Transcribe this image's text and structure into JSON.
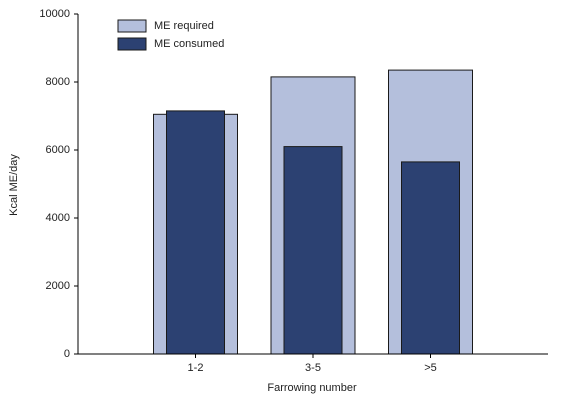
{
  "chart_data": {
    "type": "bar",
    "x_label": "Farrowing number",
    "y_label": "Kcal ME/day",
    "categories": [
      "1-2",
      "3-5",
      ">5"
    ],
    "series": [
      {
        "name": "ME required",
        "color": "#b4bfdc",
        "values": [
          7050,
          8150,
          8350
        ]
      },
      {
        "name": "ME consumed",
        "color": "#2c4172",
        "values": [
          7150,
          6100,
          5650
        ]
      }
    ],
    "ylim": [
      0,
      10000
    ],
    "yticks": [
      0,
      2000,
      4000,
      6000,
      8000,
      10000
    ],
    "legend": "upper-left"
  }
}
